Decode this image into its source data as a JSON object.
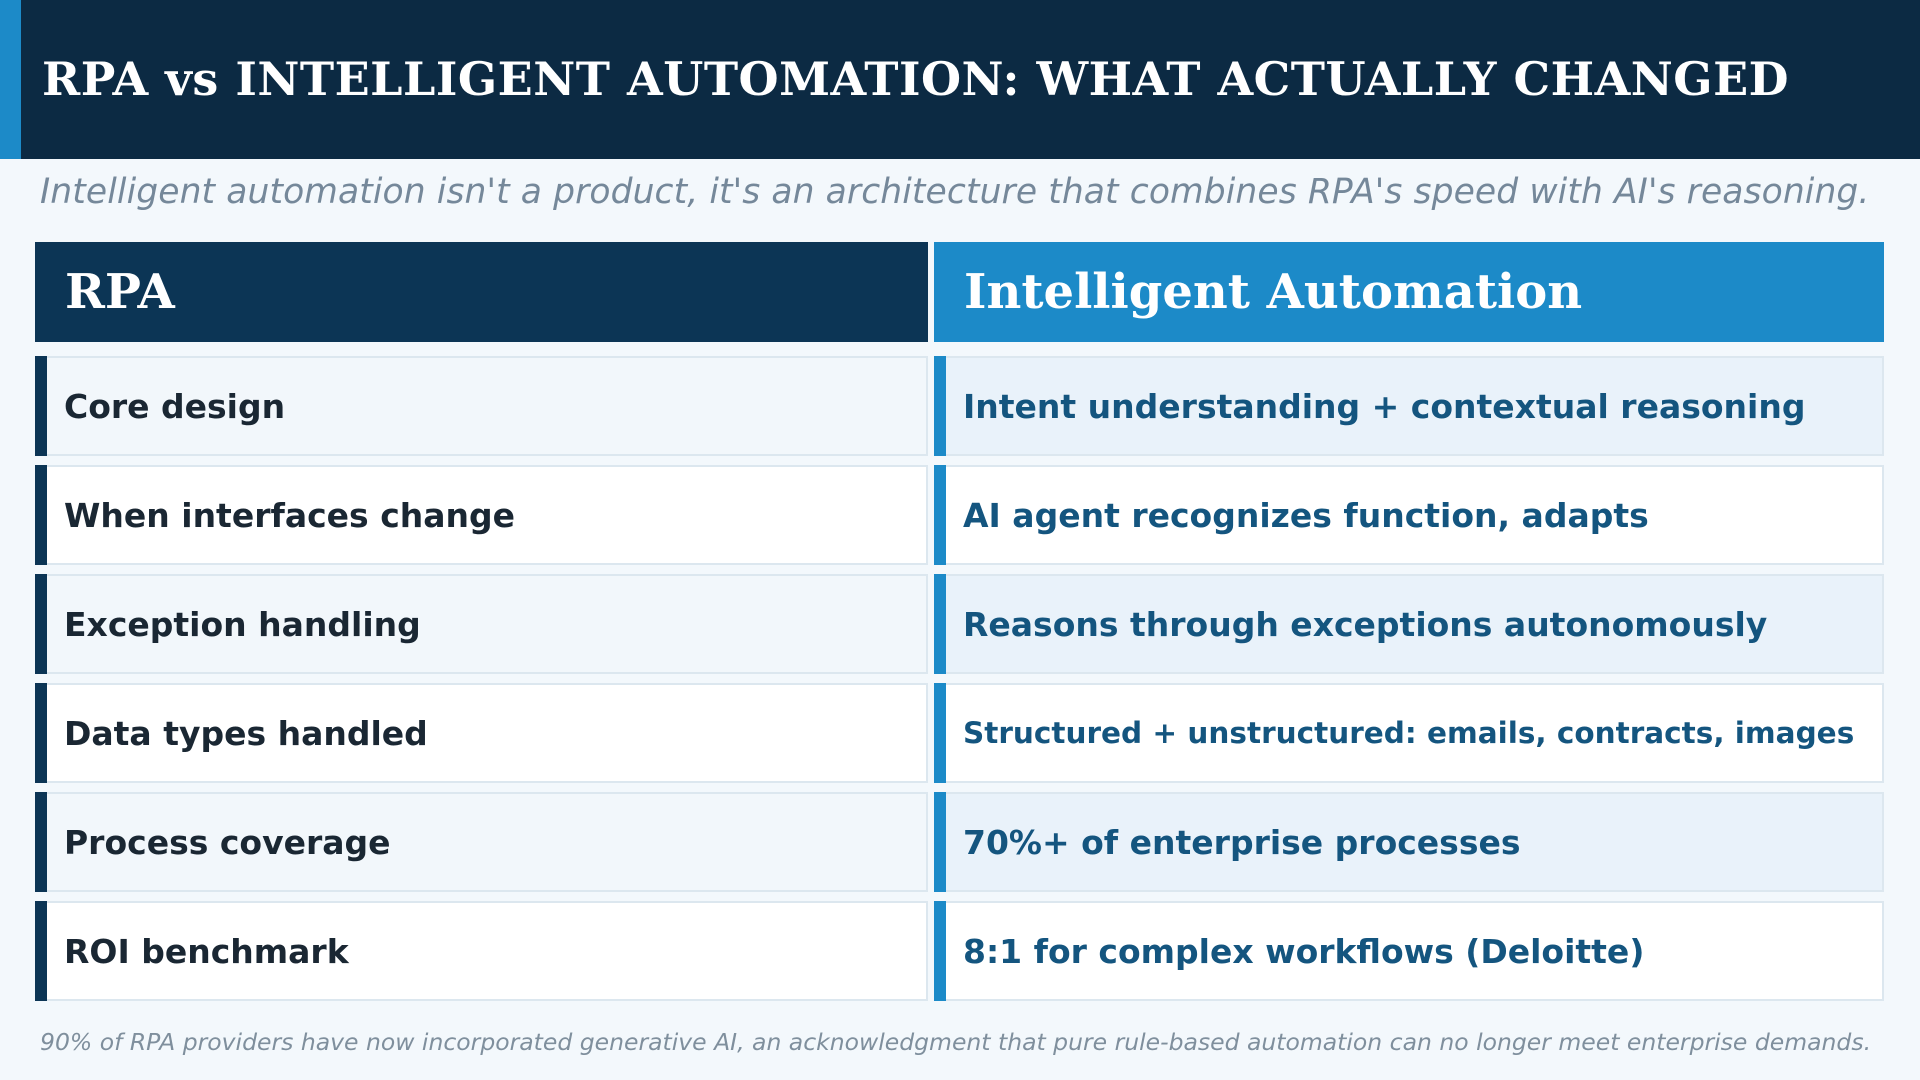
{
  "title": "RPA vs INTELLIGENT AUTOMATION: WHAT ACTUALLY CHANGED",
  "subtitle": "Intelligent automation isn't a product, it's an architecture that combines RPA's speed with AI's reasoning.",
  "columns": {
    "rpa": "RPA",
    "ia": "Intelligent Automation"
  },
  "rows": [
    {
      "label": "Core design",
      "value": "Intent understanding + contextual reasoning"
    },
    {
      "label": "When interfaces change",
      "value": "AI agent recognizes function, adapts"
    },
    {
      "label": "Exception handling",
      "value": "Reasons through exceptions autonomously"
    },
    {
      "label": "Data types handled",
      "value": "Structured + unstructured: emails, contracts, images"
    },
    {
      "label": "Process coverage",
      "value": "70%+ of enterprise processes"
    },
    {
      "label": "ROI benchmark",
      "value": "8:1 for complex workflows (Deloitte)"
    }
  ],
  "footnote": "90% of RPA providers have now incorporated generative AI, an acknowledgment that pure rule-based automation can no longer meet enterprise demands.",
  "colors": {
    "header_bg": "#0c2a43",
    "accent_blue": "#1c8ac8",
    "navy": "#0c3555",
    "value_text": "#14557f",
    "subtitle_text": "#75889a"
  }
}
